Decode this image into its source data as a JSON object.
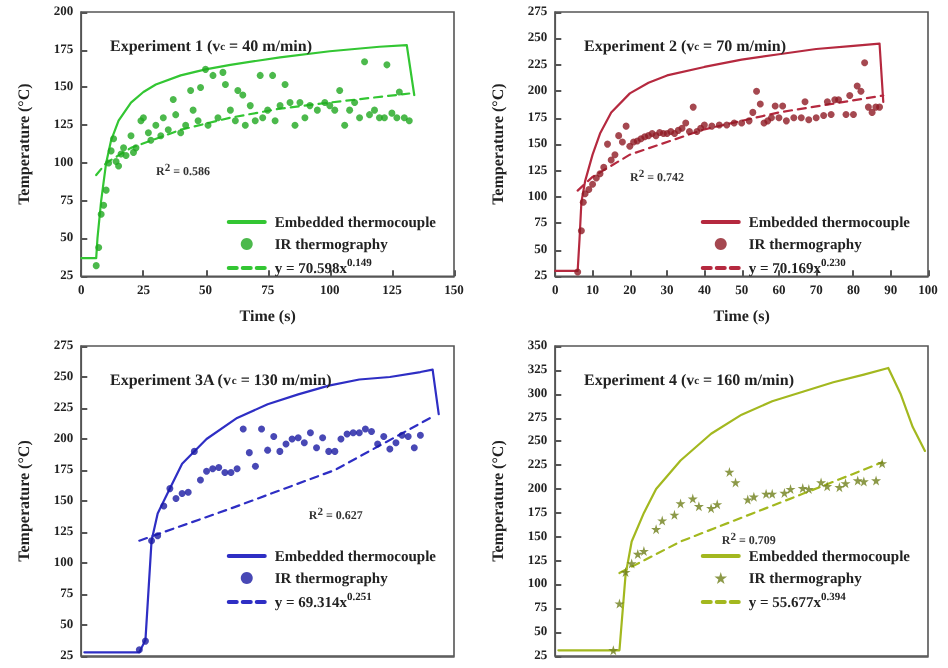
{
  "chart_data": [
    {
      "type": "line",
      "title": "Experiment 1 (v$_{c}$ = 40 m/min)",
      "xlabel": "Time (s)",
      "ylabel": "Temperature (°C)",
      "annotations": [
        "R$^{2}$ = 0.586"
      ],
      "xlim": [
        0,
        150
      ],
      "xticks": [
        0,
        25,
        50,
        75,
        100,
        125,
        150
      ],
      "ylim": [
        25,
        200
      ],
      "yticks": [
        25,
        50,
        75,
        100,
        125,
        150,
        175,
        200
      ],
      "legend": "bottom right",
      "series": [
        {
          "name": "Embedded thermocouple",
          "type": "line",
          "color": "#33c633",
          "marker": "none",
          "x": [
            0,
            6,
            6.5,
            8,
            10,
            12,
            15,
            20,
            25,
            30,
            40,
            50,
            60,
            80,
            100,
            120,
            131,
            134
          ],
          "values": [
            37,
            37,
            50,
            75,
            100,
            115,
            128,
            140,
            147,
            152,
            158,
            162,
            165,
            170,
            174,
            177,
            178,
            145
          ]
        },
        {
          "name": "IR thermography",
          "type": "scatter",
          "color": "#1fa81f",
          "marker": "circle",
          "x": [
            6,
            7,
            8,
            9,
            10,
            11,
            12,
            13,
            14,
            15,
            16,
            17,
            18,
            20,
            21,
            22,
            24,
            25,
            27,
            28,
            30,
            32,
            33,
            35,
            37,
            38,
            40,
            42,
            44,
            45,
            47,
            48,
            50,
            51,
            53,
            55,
            57,
            58,
            60,
            62,
            63,
            65,
            66,
            68,
            70,
            72,
            73,
            75,
            77,
            78,
            80,
            82,
            84,
            86,
            88,
            90,
            92,
            95,
            98,
            100,
            102,
            104,
            106,
            108,
            110,
            112,
            114,
            116,
            118,
            120,
            122,
            123,
            125,
            127,
            128,
            130,
            132
          ],
          "values": [
            32,
            44,
            66,
            72,
            82,
            100,
            108,
            116,
            101,
            98,
            106,
            110,
            105,
            118,
            107,
            110,
            128,
            130,
            120,
            115,
            125,
            118,
            130,
            122,
            142,
            132,
            120,
            125,
            148,
            135,
            128,
            150,
            162,
            125,
            158,
            130,
            160,
            152,
            135,
            128,
            148,
            145,
            125,
            138,
            128,
            158,
            130,
            135,
            158,
            128,
            138,
            152,
            140,
            125,
            140,
            130,
            138,
            135,
            140,
            138,
            135,
            148,
            125,
            135,
            140,
            130,
            167,
            132,
            135,
            130,
            130,
            165,
            133,
            130,
            147,
            130,
            128
          ]
        },
        {
          "name": "y = 70.598x$^{0.149}$",
          "type": "line",
          "color": "#33c633",
          "marker": "none",
          "line_style": "dashed",
          "x": [
            6,
            10,
            20,
            40,
            60,
            80,
            100,
            132
          ],
          "values": [
            92,
            100,
            110,
            122,
            130,
            136,
            140,
            146
          ]
        }
      ]
    },
    {
      "type": "line",
      "title": "Experiment 2 (v$_{c}$ = 70 m/min)",
      "xlabel": "Time (s)",
      "ylabel": "Temperature (°C)",
      "annotations": [
        "R$^{2}$ = 0.742"
      ],
      "xlim": [
        0,
        100
      ],
      "xticks": [
        0,
        10,
        20,
        30,
        40,
        50,
        60,
        70,
        80,
        90,
        100
      ],
      "ylim": [
        25,
        275
      ],
      "yticks": [
        25,
        50,
        75,
        100,
        125,
        150,
        175,
        200,
        225,
        250,
        275
      ],
      "legend": "bottom right",
      "series": [
        {
          "name": "Embedded thermocouple",
          "type": "line",
          "color": "#b5293f",
          "marker": "none",
          "x": [
            0,
            6,
            6.5,
            7,
            8,
            10,
            12,
            15,
            20,
            25,
            30,
            40,
            50,
            60,
            70,
            80,
            87,
            88
          ],
          "values": [
            30,
            30,
            60,
            95,
            115,
            140,
            160,
            180,
            198,
            208,
            215,
            223,
            230,
            235,
            240,
            243,
            245,
            190
          ]
        },
        {
          "name": "IR thermography",
          "type": "scatter",
          "color": "#8e1a24",
          "marker": "circle",
          "x": [
            6,
            7,
            7.5,
            8,
            9,
            10,
            11,
            12,
            13,
            14,
            15,
            16,
            17,
            18,
            19,
            20,
            21,
            22,
            23,
            24,
            25,
            26,
            27,
            28,
            29,
            30,
            31,
            32,
            33,
            34,
            35,
            36,
            37,
            38,
            39,
            40,
            42,
            44,
            46,
            48,
            50,
            52,
            53,
            54,
            55,
            56,
            57,
            58,
            59,
            60,
            61,
            62,
            64,
            66,
            67,
            68,
            70,
            72,
            73,
            74,
            75,
            76,
            78,
            79,
            80,
            81,
            82,
            83,
            84,
            85,
            86,
            87
          ],
          "values": [
            29,
            68,
            95,
            103,
            107,
            112,
            118,
            122,
            128,
            150,
            135,
            140,
            158,
            152,
            167,
            148,
            152,
            153,
            155,
            157,
            158,
            160,
            158,
            161,
            160,
            160,
            162,
            160,
            163,
            165,
            170,
            162,
            185,
            162,
            165,
            168,
            167,
            168,
            168,
            170,
            170,
            172,
            180,
            200,
            188,
            170,
            172,
            175,
            186,
            175,
            186,
            172,
            175,
            175,
            190,
            173,
            175,
            177,
            190,
            178,
            192,
            192,
            178,
            196,
            178,
            205,
            200,
            227,
            185,
            180,
            185,
            185
          ]
        },
        {
          "name": "y = 70.169x$^{0.230}$",
          "type": "line",
          "color": "#b5293f",
          "marker": "none",
          "line_style": "dashed",
          "x": [
            6,
            10,
            20,
            40,
            60,
            88
          ],
          "values": [
            106,
            119,
            140,
            164,
            180,
            196
          ]
        }
      ]
    },
    {
      "type": "line",
      "title": "Experiment 3A (v$_{c}$ = 130 m/min)",
      "ylabel": "Temperature (°C)",
      "annotations": [
        "R$^{2}$ = 0.627"
      ],
      "categories": [
        null,
        null,
        null,
        null,
        null,
        null,
        null,
        null,
        null,
        null,
        null,
        null,
        null,
        null,
        null,
        null,
        null,
        null,
        null,
        null,
        null,
        null,
        null,
        null,
        null,
        null,
        null,
        null,
        null,
        null,
        null,
        null,
        null,
        null,
        null,
        null,
        null,
        null,
        null,
        null,
        null,
        null,
        null,
        null,
        null,
        null,
        null,
        null,
        null,
        null,
        null,
        null,
        null,
        null,
        null,
        null,
        null,
        null,
        null,
        null,
        null
      ],
      "ylim": [
        25,
        275
      ],
      "yticks": [
        25,
        50,
        75,
        100,
        125,
        150,
        175,
        200,
        225,
        250,
        275
      ],
      "tick_labels": "y",
      "legend": "bottom right",
      "series": [
        {
          "name": "Embedded thermocouple",
          "type": "line",
          "color": "#2e2ec4",
          "marker": "none",
          "values": [
            28,
            null,
            null,
            null,
            null,
            null,
            null,
            null,
            null,
            28,
            38,
            118,
            140,
            null,
            160,
            null,
            180,
            null,
            null,
            null,
            200,
            null,
            null,
            null,
            null,
            217,
            null,
            null,
            null,
            null,
            228,
            null,
            null,
            null,
            null,
            236,
            null,
            null,
            null,
            null,
            243,
            null,
            null,
            null,
            null,
            248,
            null,
            null,
            null,
            null,
            250,
            null,
            null,
            null,
            null,
            254,
            null,
            256,
            220,
            null,
            null
          ]
        },
        {
          "name": "IR thermography",
          "type": "scatter",
          "color": "#1a1aa3",
          "marker": "circle",
          "values": [
            null,
            null,
            null,
            null,
            null,
            null,
            null,
            null,
            null,
            30,
            37,
            118,
            122,
            146,
            160,
            152,
            156,
            157,
            190,
            167,
            174,
            176,
            177,
            173,
            173,
            176,
            208,
            189,
            178,
            208,
            191,
            202,
            190,
            196,
            200,
            201,
            197,
            205,
            193,
            201,
            190,
            190,
            200,
            204,
            205,
            205,
            208,
            206,
            196,
            202,
            192,
            197,
            203,
            202,
            193,
            203,
            null,
            null,
            null,
            null,
            null
          ]
        },
        {
          "name": "y = 69.314x$^{0.251}$",
          "type": "line",
          "color": "#2e2ec4",
          "marker": "none",
          "line_style": "dashed",
          "values": [
            null,
            null,
            null,
            null,
            null,
            null,
            null,
            null,
            null,
            118,
            null,
            null,
            null,
            null,
            null,
            null,
            null,
            null,
            null,
            null,
            null,
            null,
            null,
            null,
            144,
            null,
            null,
            null,
            null,
            null,
            null,
            null,
            null,
            null,
            null,
            null,
            null,
            null,
            null,
            null,
            null,
            175,
            null,
            null,
            null,
            null,
            null,
            null,
            null,
            null,
            null,
            null,
            null,
            null,
            null,
            null,
            null,
            218,
            null,
            null,
            null
          ]
        }
      ]
    },
    {
      "type": "line",
      "title": "Experiment 4 (v$_{c}$ = 160 m/min)",
      "ylabel": "Temperature (°C)",
      "annotations": [
        "R$^{2}$ = 0.709"
      ],
      "categories": [
        null,
        null,
        null,
        null,
        null,
        null,
        null,
        null,
        null,
        null,
        null,
        null,
        null,
        null,
        null,
        null,
        null,
        null,
        null,
        null,
        null,
        null,
        null,
        null,
        null,
        null,
        null,
        null,
        null,
        null,
        null,
        null,
        null,
        null,
        null,
        null,
        null,
        null,
        null,
        null,
        null,
        null,
        null,
        null,
        null,
        null,
        null,
        null,
        null,
        null,
        null,
        null,
        null,
        null,
        null,
        null,
        null,
        null,
        null,
        null,
        null
      ],
      "ylim": [
        25,
        350
      ],
      "yticks": [
        25,
        50,
        75,
        100,
        125,
        150,
        175,
        200,
        225,
        250,
        275,
        300,
        325,
        350
      ],
      "tick_labels": "y",
      "legend": "bottom right",
      "series": [
        {
          "name": "Embedded thermocouple",
          "type": "line",
          "color": "#a3b81f",
          "marker": "none",
          "values": [
            31,
            null,
            null,
            null,
            null,
            null,
            null,
            null,
            null,
            null,
            31,
            110,
            145,
            null,
            175,
            null,
            200,
            null,
            null,
            null,
            230,
            null,
            null,
            null,
            null,
            258,
            null,
            null,
            null,
            null,
            278,
            null,
            null,
            null,
            null,
            292,
            null,
            null,
            null,
            null,
            302,
            null,
            null,
            null,
            null,
            312,
            null,
            null,
            null,
            null,
            320,
            null,
            null,
            null,
            327,
            null,
            300,
            null,
            265,
            null,
            240
          ]
        },
        {
          "name": "IR thermography",
          "type": "scatter",
          "color": "#6f7f1a",
          "marker": "star",
          "values": [
            null,
            null,
            null,
            null,
            null,
            null,
            null,
            null,
            null,
            31,
            80,
            113,
            122,
            132,
            135,
            null,
            158,
            167,
            null,
            173,
            185,
            null,
            190,
            182,
            null,
            180,
            184,
            null,
            218,
            207,
            null,
            189,
            192,
            null,
            195,
            195,
            null,
            196,
            200,
            null,
            201,
            200,
            null,
            207,
            203,
            null,
            202,
            206,
            null,
            209,
            208,
            null,
            209,
            227,
            null,
            null,
            null,
            null,
            null,
            null,
            null
          ]
        },
        {
          "name": "y = 55.677x$^{0.394}$",
          "type": "line",
          "color": "#a3b81f",
          "marker": "none",
          "line_style": "dashed",
          "values": [
            null,
            null,
            null,
            null,
            null,
            null,
            null,
            null,
            null,
            null,
            112,
            null,
            null,
            null,
            null,
            null,
            null,
            null,
            null,
            null,
            145,
            null,
            null,
            null,
            null,
            null,
            null,
            null,
            null,
            null,
            170,
            null,
            null,
            null,
            null,
            null,
            null,
            null,
            null,
            null,
            195,
            null,
            null,
            null,
            null,
            null,
            null,
            null,
            null,
            null,
            null,
            null,
            null,
            228,
            null,
            null,
            null,
            null,
            null,
            null,
            null
          ]
        }
      ]
    }
  ]
}
